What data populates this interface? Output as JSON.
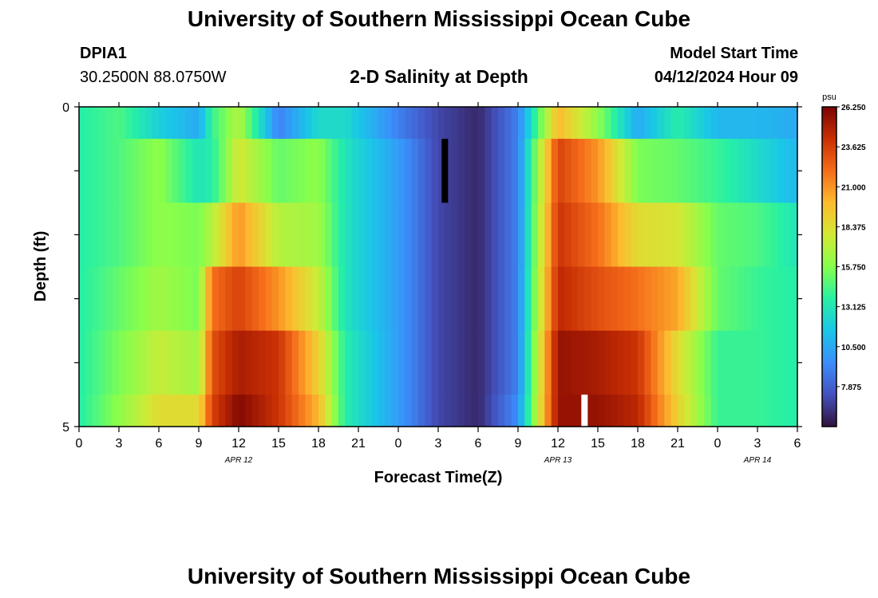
{
  "page": {
    "title": "University of Southern Mississippi Ocean Cube",
    "repeat_title": "University of Southern Mississippi Ocean Cube",
    "station_id": "DPIA1",
    "coordinates": "30.2500N  88.0750W",
    "subtitle": "2-D Salinity at Depth",
    "model_start_label": "Model Start Time",
    "model_start_value": "04/12/2024 Hour 09"
  },
  "chart_data": {
    "type": "heatmap",
    "title": "2-D Salinity at Depth",
    "xlabel": "Forecast Time(Z)",
    "ylabel": "Depth (ft)",
    "x_range_hours": [
      0,
      54
    ],
    "x_tick_labels": [
      "0",
      "3",
      "6",
      "9",
      "12",
      "15",
      "18",
      "21",
      "0",
      "3",
      "6",
      "9",
      "12",
      "15",
      "18",
      "21",
      "0",
      "3",
      "6"
    ],
    "date_labels": [
      {
        "label": "APR 12",
        "at_hour": 12
      },
      {
        "label": "APR 13",
        "at_hour": 36
      },
      {
        "label": "APR 14",
        "at_hour": 51
      }
    ],
    "y_range": [
      0,
      5
    ],
    "y_tick_labels": [
      "0",
      "5"
    ],
    "colorbar": {
      "unit": "psu",
      "tick_labels": [
        "26.250",
        "23.625",
        "21.000",
        "18.375",
        "15.750",
        "13.125",
        "10.500",
        "7.875"
      ],
      "min": 5.25,
      "max": 26.25
    },
    "depth_rows": [
      0,
      1,
      2,
      3,
      4,
      5
    ],
    "time_key_hours": [
      0,
      3,
      6,
      9,
      10,
      12,
      15,
      18,
      20,
      24,
      27,
      30,
      33,
      36,
      39,
      42,
      45,
      48,
      51,
      54
    ],
    "salinity_key_values": [
      [
        13.5,
        14.5,
        12.0,
        10.5,
        14.0,
        17.0,
        9.0,
        12.5,
        12.5,
        9.0,
        7.0,
        6.0,
        9.0,
        20.0,
        16.0,
        10.5,
        13.5,
        11.0,
        11.0,
        10.5
      ],
      [
        13.5,
        14.5,
        16.0,
        13.0,
        13.5,
        18.0,
        15.0,
        16.0,
        13.0,
        10.0,
        7.0,
        6.0,
        9.0,
        23.5,
        21.0,
        15.5,
        15.0,
        14.0,
        12.5,
        11.0
      ],
      [
        13.5,
        14.5,
        16.0,
        15.5,
        17.0,
        21.0,
        17.0,
        16.5,
        13.0,
        10.0,
        7.0,
        6.0,
        9.0,
        24.0,
        22.0,
        18.5,
        18.0,
        15.0,
        14.5,
        13.0
      ],
      [
        13.5,
        15.0,
        16.5,
        15.5,
        22.0,
        23.5,
        21.0,
        17.5,
        13.0,
        10.0,
        7.0,
        6.0,
        9.0,
        24.5,
        23.0,
        22.0,
        20.5,
        15.0,
        14.0,
        13.5
      ],
      [
        13.5,
        15.5,
        17.5,
        16.5,
        23.0,
        25.0,
        24.0,
        19.0,
        13.5,
        10.0,
        7.0,
        6.0,
        9.0,
        25.5,
        25.0,
        24.0,
        18.5,
        14.0,
        14.0,
        13.5
      ],
      [
        13.5,
        16.0,
        18.5,
        18.5,
        23.5,
        26.0,
        24.0,
        20.0,
        13.5,
        10.0,
        7.0,
        6.0,
        9.5,
        25.5,
        25.5,
        24.5,
        19.0,
        14.0,
        14.0,
        13.5
      ]
    ],
    "markers": [
      {
        "color": "#000000",
        "x_hour": 27.5,
        "depth_from": 0.5,
        "depth_to": 1.5
      },
      {
        "color": "#ffffff",
        "x_hour": 38.0,
        "depth_from": 4.5,
        "depth_to": 5.0
      }
    ]
  }
}
